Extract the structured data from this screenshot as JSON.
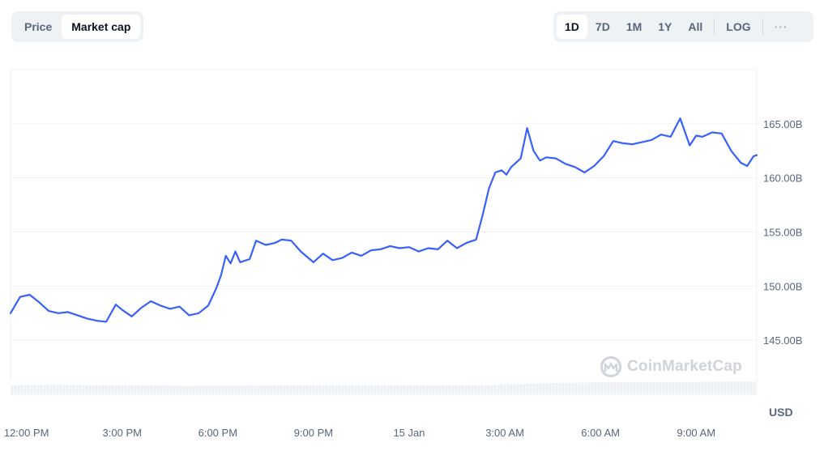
{
  "metric_tabs": [
    {
      "label": "Price",
      "active": false
    },
    {
      "label": "Market cap",
      "active": true
    }
  ],
  "range_tabs": [
    {
      "label": "1D",
      "active": true
    },
    {
      "label": "7D",
      "active": false
    },
    {
      "label": "1M",
      "active": false
    },
    {
      "label": "1Y",
      "active": false
    },
    {
      "label": "All",
      "active": false
    }
  ],
  "log_label": "LOG",
  "more_label": "···",
  "watermark": "CoinMarketCap",
  "colors": {
    "line": "#3861fb",
    "grid": "#eff2f5",
    "volume": "#eceff3"
  },
  "chart_data": {
    "type": "line",
    "currency_label": "USD",
    "ylim": [
      140,
      170
    ],
    "y_ticks": [
      {
        "value": 145,
        "label": "145.00B"
      },
      {
        "value": 150,
        "label": "150.00B"
      },
      {
        "value": 155,
        "label": "155.00B"
      },
      {
        "value": 160,
        "label": "160.00B"
      },
      {
        "value": 165,
        "label": "165.00B"
      }
    ],
    "xlim": [
      11.5,
      34.9
    ],
    "x_ticks": [
      {
        "value": 12,
        "label": "12:00 PM"
      },
      {
        "value": 15,
        "label": "3:00 PM"
      },
      {
        "value": 18,
        "label": "6:00 PM"
      },
      {
        "value": 21,
        "label": "9:00 PM"
      },
      {
        "value": 24,
        "label": "15 Jan"
      },
      {
        "value": 27,
        "label": "3:00 AM"
      },
      {
        "value": 30,
        "label": "6:00 AM"
      },
      {
        "value": 33,
        "label": "9:00 AM"
      }
    ],
    "series": [
      {
        "x": [
          11.5,
          11.8,
          12.1,
          12.4,
          12.7,
          13.0,
          13.3,
          13.6,
          13.9,
          14.2,
          14.5,
          14.8,
          15.0,
          15.3,
          15.6,
          15.9,
          16.2,
          16.5,
          16.8,
          17.1,
          17.4,
          17.7,
          17.95,
          18.1,
          18.25,
          18.4,
          18.55,
          18.7,
          19.0,
          19.2,
          19.5,
          19.8,
          20.0,
          20.3,
          20.6,
          21.0,
          21.3,
          21.6,
          21.9,
          22.2,
          22.5,
          22.8,
          23.1,
          23.4,
          23.7,
          24.0,
          24.3,
          24.6,
          24.9,
          25.2,
          25.5,
          25.8,
          26.1,
          26.3,
          26.5,
          26.7,
          26.9,
          27.05,
          27.2,
          27.5,
          27.7,
          27.9,
          28.1,
          28.3,
          28.6,
          28.9,
          29.2,
          29.5,
          29.8,
          30.1,
          30.4,
          30.7,
          31.0,
          31.3,
          31.6,
          31.9,
          32.2,
          32.5,
          32.8,
          33.0,
          33.2,
          33.5,
          33.8,
          34.1,
          34.4,
          34.6,
          34.8,
          34.9
        ],
        "y": [
          147.5,
          149.0,
          149.2,
          148.5,
          147.7,
          147.5,
          147.6,
          147.3,
          147.0,
          146.8,
          146.7,
          148.3,
          147.8,
          147.2,
          148.0,
          148.6,
          148.2,
          147.9,
          148.1,
          147.3,
          147.5,
          148.2,
          149.8,
          151.0,
          152.8,
          152.1,
          153.2,
          152.2,
          152.5,
          154.2,
          153.8,
          154.0,
          154.3,
          154.2,
          153.2,
          152.2,
          153.0,
          152.4,
          152.6,
          153.1,
          152.8,
          153.3,
          153.4,
          153.7,
          153.5,
          153.6,
          153.2,
          153.5,
          153.4,
          154.2,
          153.5,
          154.0,
          154.3,
          156.5,
          159.0,
          160.5,
          160.7,
          160.3,
          161.0,
          161.8,
          164.6,
          162.5,
          161.6,
          161.9,
          161.8,
          161.3,
          161.0,
          160.5,
          161.1,
          162.0,
          163.4,
          163.2,
          163.1,
          163.3,
          163.5,
          164.0,
          163.8,
          165.5,
          163.0,
          163.9,
          163.8,
          164.2,
          164.1,
          162.5,
          161.4,
          161.1,
          162.0,
          162.1
        ]
      }
    ],
    "volume": {
      "x": [
        11.5,
        13,
        15,
        17,
        19,
        21,
        23,
        25,
        26.5,
        27.5,
        28.5,
        30,
        31.5,
        33,
        34.9
      ],
      "y": [
        0.82,
        0.84,
        0.8,
        0.74,
        0.76,
        0.8,
        0.8,
        0.78,
        0.8,
        0.9,
        1.0,
        1.05,
        1.08,
        1.1,
        1.12
      ]
    }
  }
}
